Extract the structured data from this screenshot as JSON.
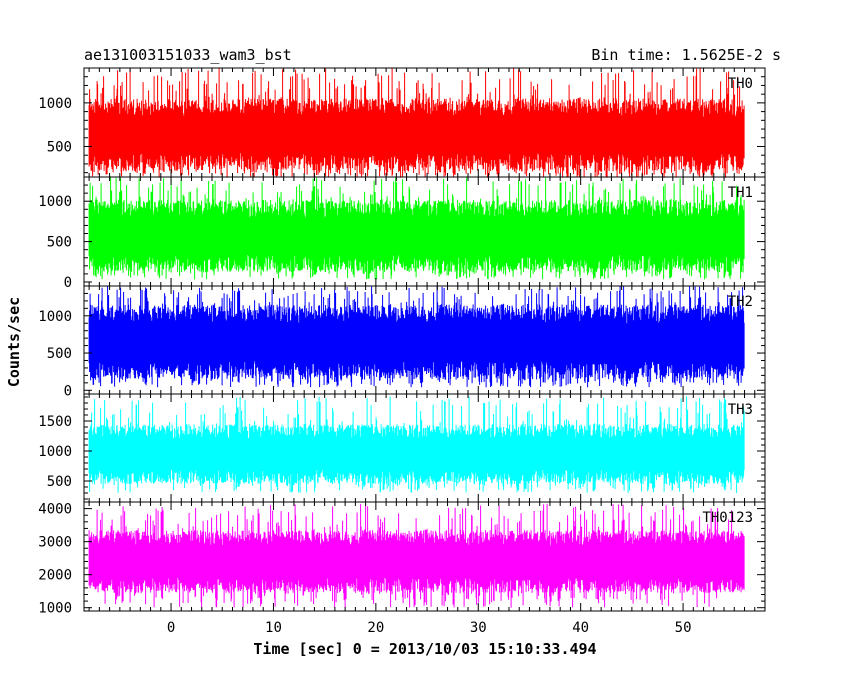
{
  "header": {
    "title": "ae131003151033_wam3_bst",
    "bin_time": "Bin time: 1.5625E-2 s"
  },
  "chart_data": {
    "type": "line",
    "xlabel": "Time [sec] 0 = 2013/10/03 15:10:33.494",
    "ylabel": "Counts/sec",
    "xlim": [
      -8.5,
      58
    ],
    "x_data_range": [
      -8,
      56
    ],
    "x_ticks": [
      0,
      10,
      20,
      30,
      40,
      50
    ],
    "x_tick_labels": [
      "0",
      "10",
      "20",
      "30",
      "40",
      "50"
    ],
    "grid": false,
    "panels": [
      {
        "name": "TH0",
        "color": "#ff0000",
        "ylim": [
          150,
          1400
        ],
        "y_ticks": [
          500,
          1000
        ],
        "y_tick_labels": [
          "500",
          "1000"
        ],
        "typical_range": [
          220,
          1050
        ],
        "extreme_range": [
          140,
          1400
        ]
      },
      {
        "name": "TH1",
        "color": "#00ff00",
        "ylim": [
          -50,
          1300
        ],
        "y_ticks": [
          0,
          500,
          1000
        ],
        "y_tick_labels": [
          "0",
          "500",
          "1000"
        ],
        "typical_range": [
          120,
          1020
        ],
        "extreme_range": [
          30,
          1300
        ]
      },
      {
        "name": "TH2",
        "color": "#0000ff",
        "ylim": [
          -50,
          1400
        ],
        "y_ticks": [
          0,
          500,
          1000
        ],
        "y_tick_labels": [
          "0",
          "500",
          "1000"
        ],
        "typical_range": [
          150,
          1150
        ],
        "extreme_range": [
          40,
          1400
        ]
      },
      {
        "name": "TH3",
        "color": "#00ffff",
        "ylim": [
          150,
          1950
        ],
        "y_ticks": [
          500,
          1000,
          1500
        ],
        "y_tick_labels": [
          "500",
          "1000",
          "1500"
        ],
        "typical_range": [
          450,
          1450
        ],
        "extreme_range": [
          300,
          1920
        ]
      },
      {
        "name": "TH0123",
        "color": "#ff00ff",
        "ylim": [
          900,
          4200
        ],
        "y_ticks": [
          1000,
          2000,
          3000,
          4000
        ],
        "y_tick_labels": [
          "1000",
          "2000",
          "3000",
          "4000"
        ],
        "typical_range": [
          1450,
          3350
        ],
        "extreme_range": [
          1000,
          4150
        ]
      }
    ]
  }
}
